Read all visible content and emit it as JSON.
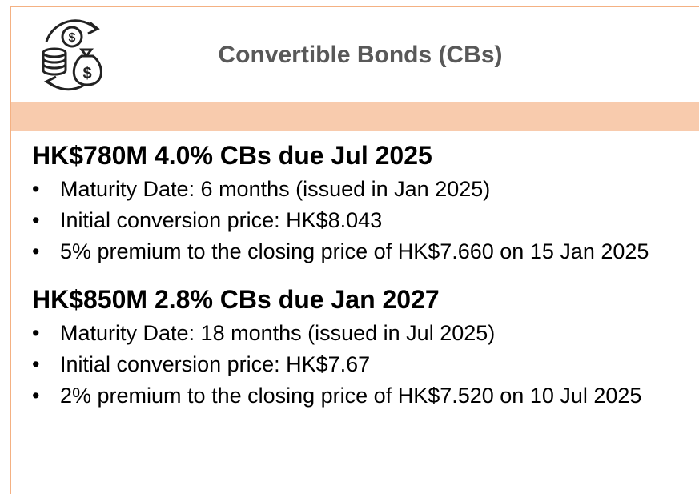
{
  "header": {
    "title": "Convertible Bonds (CBs)"
  },
  "sections": [
    {
      "heading": "HK$780M 4.0% CBs due Jul 2025",
      "bullets": [
        "Maturity Date: 6 months (issued in Jan 2025)",
        "Initial conversion price: HK$8.043",
        "5% premium to the closing price of HK$7.660 on 15 Jan 2025"
      ]
    },
    {
      "heading": "HK$850M 2.8% CBs due Jan 2027",
      "bullets": [
        "Maturity Date: 18 months (issued in Jul 2025)",
        "Initial conversion price: HK$7.67",
        "2% premium to the closing price of HK$7.520 on 10 Jul 2025"
      ]
    }
  ]
}
